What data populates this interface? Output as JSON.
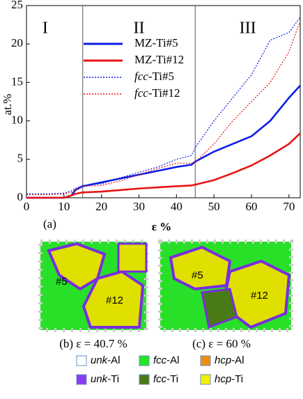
{
  "chart_data": {
    "type": "line",
    "x_label": "ε %",
    "y_label": "at.%",
    "panel_label": "(a)",
    "x": [
      0,
      5,
      10,
      12,
      13,
      15,
      20,
      25,
      30,
      35,
      40,
      44,
      45,
      50,
      55,
      60,
      65,
      70,
      73
    ],
    "series": [
      {
        "name": "MZ-Ti#5",
        "color": "#0a1ee6",
        "dash": "solid",
        "values": [
          0,
          0,
          0,
          0.3,
          1.0,
          1.5,
          2.0,
          2.5,
          3.0,
          3.5,
          4.0,
          4.3,
          4.7,
          6.0,
          7.0,
          8.0,
          10.0,
          13.0,
          14.6
        ]
      },
      {
        "name": "MZ-Ti#12",
        "color": "#e61414",
        "dash": "solid",
        "values": [
          0,
          0,
          0,
          0.3,
          0.5,
          0.7,
          0.8,
          1.0,
          1.2,
          1.35,
          1.5,
          1.6,
          1.7,
          2.3,
          3.2,
          4.2,
          5.5,
          7.0,
          8.4
        ]
      },
      {
        "name_italic": "fcc",
        "name": "-Ti#5",
        "color": "#0a1ee6",
        "dash": "dotted",
        "values": [
          0.5,
          0.5,
          0.6,
          0.9,
          1.2,
          1.6,
          1.8,
          2.6,
          3.3,
          4.0,
          5.0,
          5.5,
          6.5,
          10.0,
          13.0,
          16.0,
          20.5,
          21.5,
          23.5
        ]
      },
      {
        "name_italic": "fcc",
        "name": "-Ti#12",
        "color": "#e61414",
        "dash": "dotted",
        "values": [
          0.4,
          0.4,
          0.5,
          0.7,
          1.0,
          1.5,
          1.6,
          2.2,
          3.0,
          3.8,
          4.5,
          4.5,
          4.6,
          7.0,
          10.0,
          12.5,
          15.0,
          19.0,
          23.0
        ]
      }
    ],
    "xlim": [
      0,
      73
    ],
    "xticks": [
      0,
      10,
      20,
      30,
      40,
      50,
      60,
      70
    ],
    "ylim": [
      0,
      25
    ],
    "yticks": [
      0,
      5,
      10,
      15,
      20,
      25
    ],
    "regions": [
      {
        "label": "I",
        "x": 5
      },
      {
        "label": "II",
        "x": 30
      },
      {
        "label": "III",
        "x": 59
      }
    ],
    "region_bounds": [
      15,
      45
    ]
  },
  "panels": [
    {
      "caption": "(b) ε = 40.7 %",
      "grains": [
        "#5",
        "#12"
      ]
    },
    {
      "caption": "(c) ε = 60 %",
      "grains": [
        "#5",
        "#12"
      ]
    }
  ],
  "legend": [
    {
      "italic": "unk",
      "rest": "-Al",
      "color": "#ffffff"
    },
    {
      "italic": "fcc",
      "rest": "-Al",
      "color": "#22e622"
    },
    {
      "italic": "hcp",
      "rest": "-Al",
      "color": "#f08c14"
    },
    {
      "italic": "unk",
      "rest": "-Ti",
      "color": "#8a3cf0"
    },
    {
      "italic": "fcc",
      "rest": "-Ti",
      "color": "#4a7a14"
    },
    {
      "italic": "hcp",
      "rest": "-Ti",
      "color": "#f0f000"
    }
  ]
}
